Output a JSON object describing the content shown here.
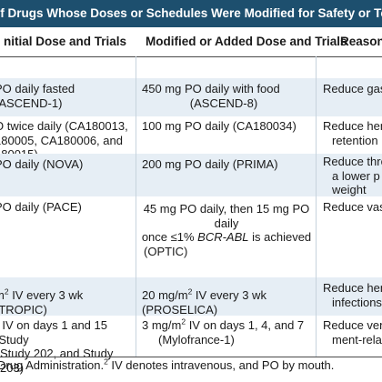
{
  "table": {
    "title": "of Drugs Whose Doses or Schedules Were Modified for Safety or Tolerability after A",
    "headers": {
      "initial": "nitial Dose and Trials",
      "modified": "Modified or Added Dose and Trials",
      "reason": "Reason fo"
    },
    "rows": [
      {
        "initial": [
          "PO daily fasted (ASCEND-1)"
        ],
        "modified": [
          "450 mg PO daily with food",
          "(ASCEND-8)"
        ],
        "reason": [
          "Reduce gastr"
        ]
      },
      {
        "initial": [
          "O twice daily (CA180013,",
          "180005, CA180006, and",
          "180015)"
        ],
        "modified": [
          "100 mg PO daily (CA180034)"
        ],
        "reason": [
          "Reduce hema",
          "retention"
        ]
      },
      {
        "initial": [
          "PO daily (NOVA)"
        ],
        "modified": [
          "200 mg PO daily (PRIMA)"
        ],
        "reason": [
          "Reduce thron",
          "a lower p",
          "weight"
        ]
      },
      {
        "initial": [
          "PO daily (PACE)"
        ],
        "modified_parts": {
          "line1": "45 mg PO daily, then 15 mg PO daily",
          "line2_pre": "once ≤1% ",
          "line2_italic": "BCR-ABL",
          "line2_post": " is achieved",
          "line3": "(OPTIC)"
        },
        "reason": [
          "Reduce vasc"
        ]
      },
      {
        "initial": [
          "",
          "m",
          "2",
          " IV every 3 wk (TROPIC)"
        ],
        "modified": [
          "20 mg/m",
          "2",
          " IV every 3 wk (PROSELICA)"
        ],
        "reason": [
          "Reduce hema",
          "infections"
        ]
      },
      {
        "initial": [
          "",
          "2",
          " IV on days 1 and 15 (Study",
          "Study 202, and Study 203)"
        ],
        "modified": [
          "3 mg/m",
          "2",
          " IV on days 1, 4, and 7",
          "(Mylofrance-1)"
        ],
        "reason": [
          "Reduce veno",
          "ment-rela"
        ]
      }
    ],
    "footnote": {
      "pre": "Drug Administration.",
      "sup": "2",
      "post": " IV denotes intravenous, and PO by mouth."
    }
  }
}
